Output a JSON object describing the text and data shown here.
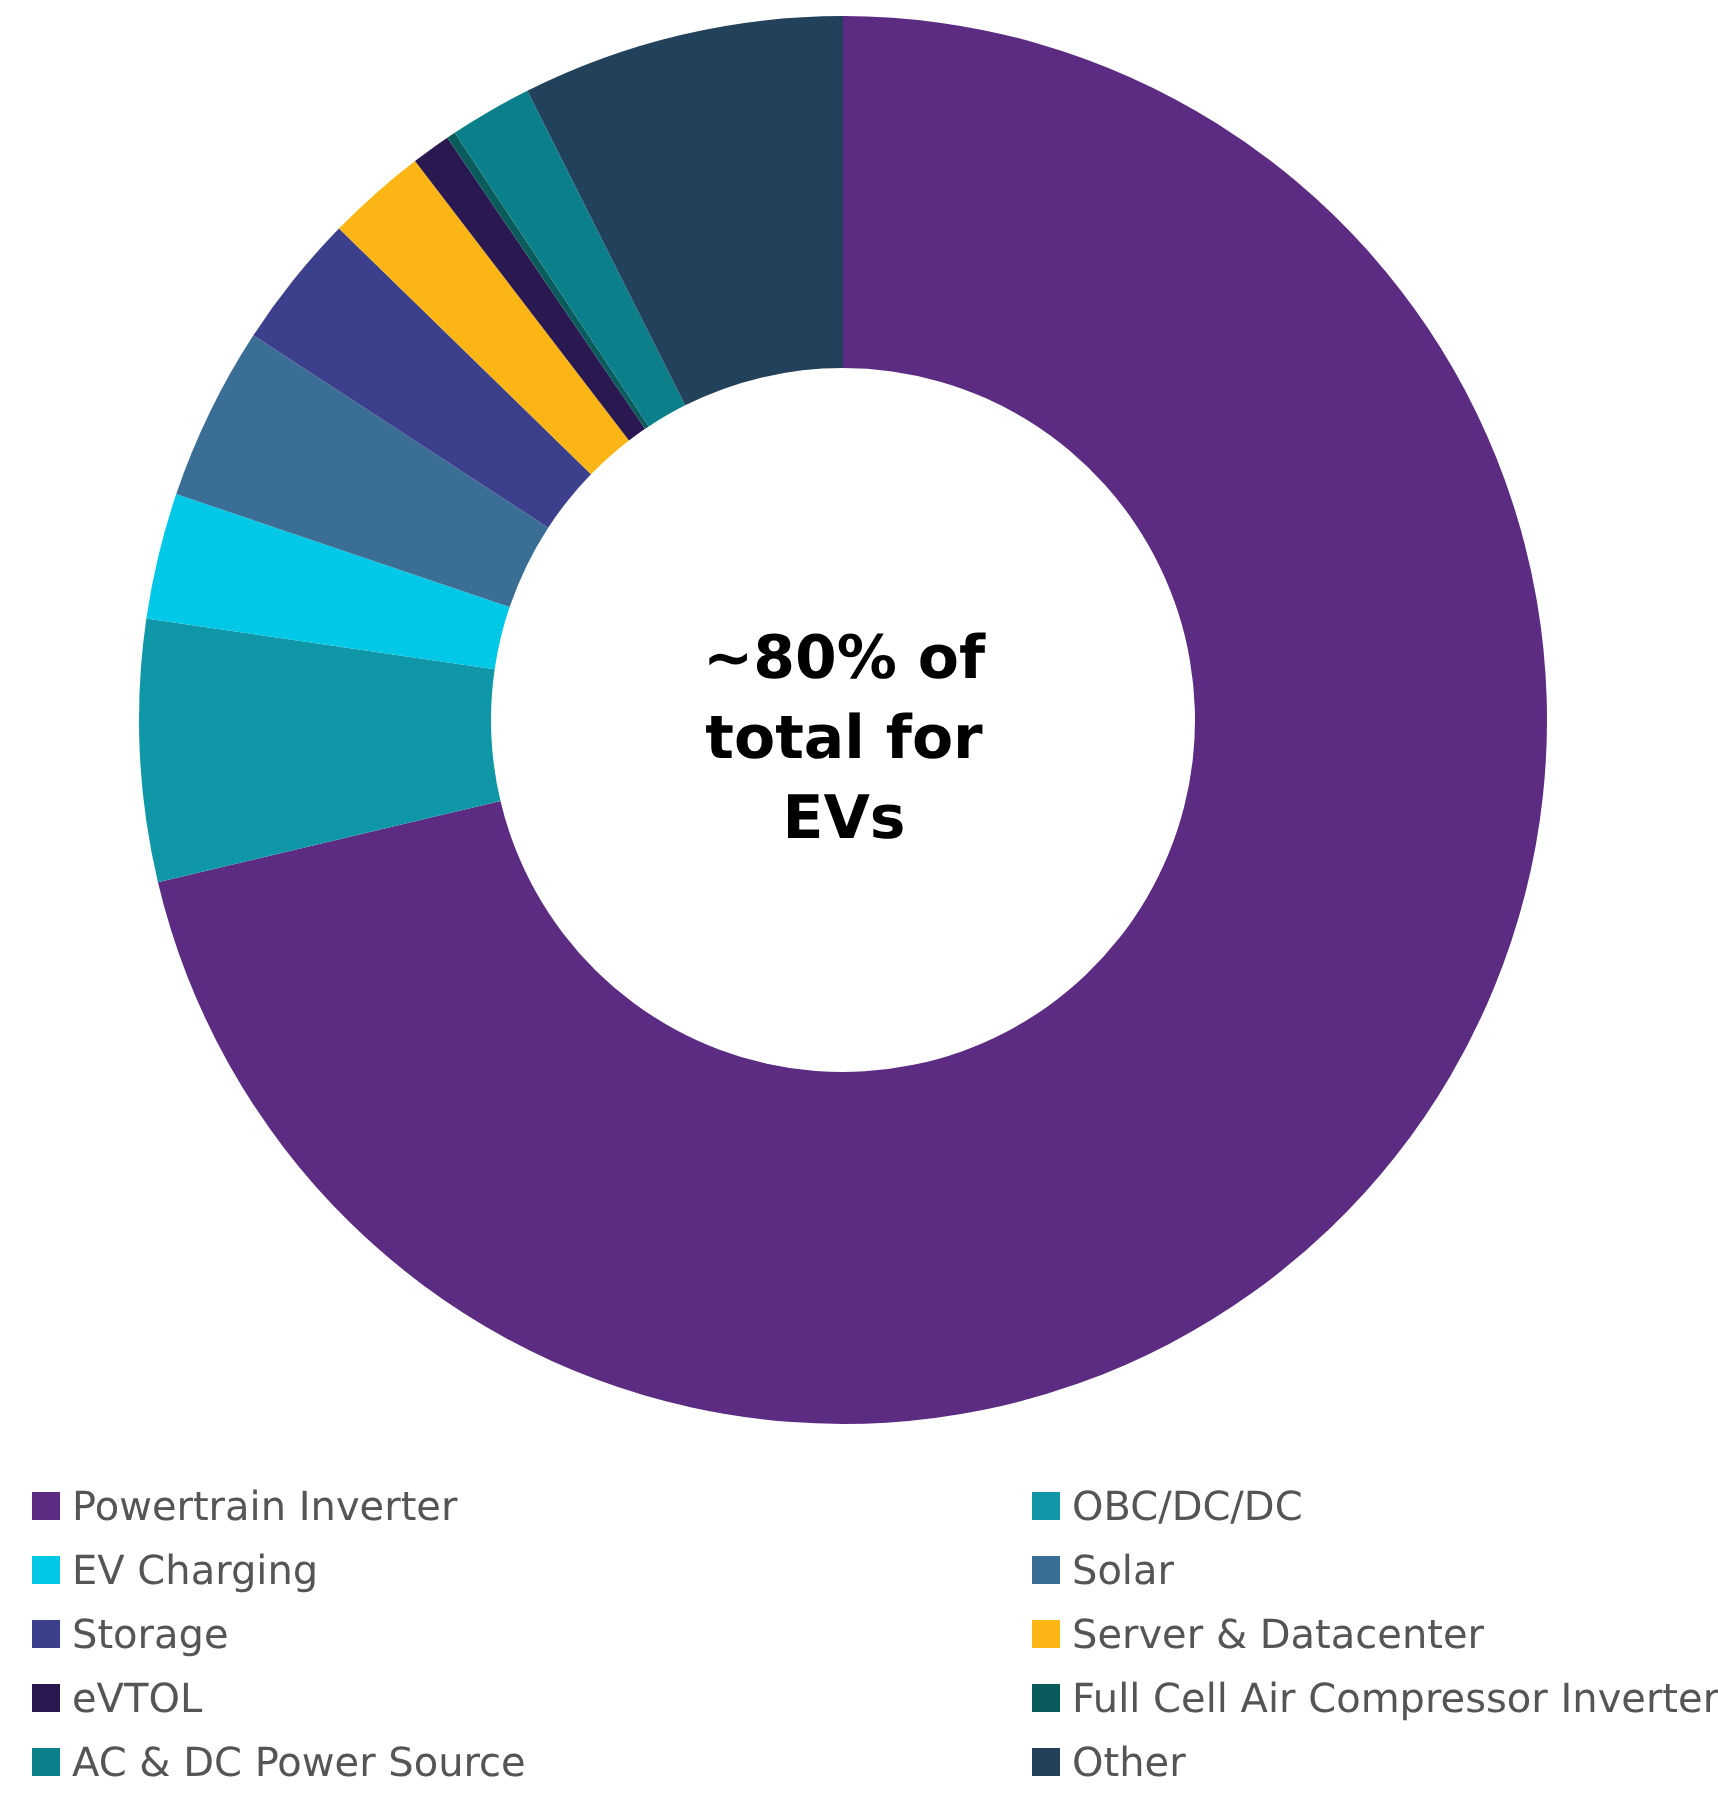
{
  "chart_data": {
    "type": "donut",
    "categories": [
      "Powertrain Inverter",
      "OBC/DC/DC",
      "EV Charging",
      "Solar",
      "Storage",
      "Server & Datacenter",
      "eVTOL",
      "Full Cell Air Compressor Inverter",
      "AC & DC Power Source",
      "Other"
    ],
    "values": [
      71.3,
      6.0,
      2.9,
      4.0,
      3.1,
      2.3,
      0.9,
      0.2,
      1.9,
      7.4
    ],
    "colors": [
      "#5b2c82",
      "#0f97a8",
      "#00c8e6",
      "#3a6e94",
      "#3b3f8c",
      "#fbb615",
      "#2a1850",
      "#0a5c5c",
      "#0b808a",
      "#22415a"
    ],
    "annotations": [
      "~80% of total for EVs"
    ],
    "legend": "bottom"
  }
}
